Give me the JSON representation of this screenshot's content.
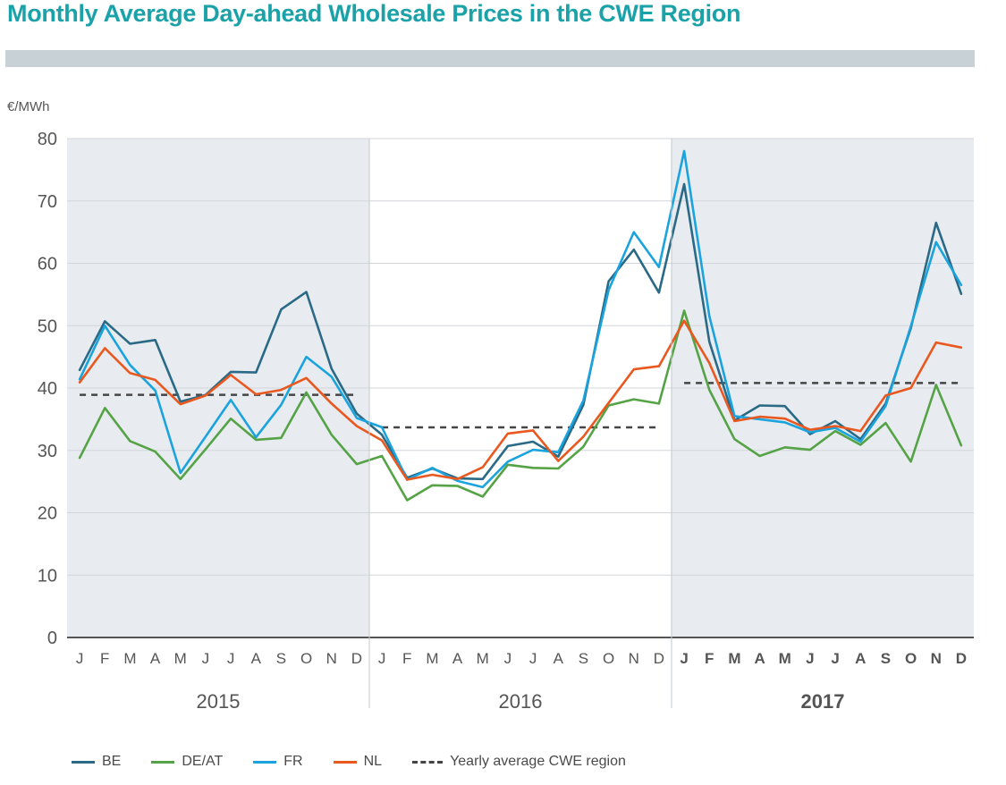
{
  "title": "Monthly Average Day-ahead Wholesale Prices in the CWE Region",
  "chart_data": {
    "type": "line",
    "ylabel": "€/MWh",
    "ylim": [
      0,
      80
    ],
    "yticks": [
      0,
      10,
      20,
      30,
      40,
      50,
      60,
      70,
      80
    ],
    "month_labels": [
      "J",
      "F",
      "M",
      "A",
      "M",
      "J",
      "J",
      "A",
      "S",
      "O",
      "N",
      "D",
      "J",
      "F",
      "M",
      "A",
      "M",
      "J",
      "J",
      "A",
      "S",
      "O",
      "N",
      "D",
      "J",
      "F",
      "M",
      "A",
      "M",
      "J",
      "J",
      "A",
      "S",
      "O",
      "N",
      "D"
    ],
    "years": [
      {
        "label": "2015",
        "bold": false
      },
      {
        "label": "2016",
        "bold": false
      },
      {
        "label": "2017",
        "bold": true
      }
    ],
    "series": [
      {
        "name": "BE",
        "color": "#2a6a86",
        "values": [
          42.9,
          50.7,
          47.1,
          47.7,
          37.8,
          38.9,
          42.6,
          42.5,
          52.6,
          55.4,
          43.1,
          35.9,
          32.5,
          25.6,
          27.1,
          25.5,
          25.4,
          30.7,
          31.4,
          29.0,
          37.3,
          57.1,
          62.2,
          55.3,
          72.7,
          47.4,
          34.8,
          37.2,
          37.1,
          32.6,
          34.7,
          31.8,
          37.5,
          49.6,
          66.5,
          55.1
        ]
      },
      {
        "name": "DE/AT",
        "color": "#55a346",
        "values": [
          28.8,
          36.8,
          31.5,
          29.8,
          25.4,
          30.2,
          35.1,
          31.7,
          32.0,
          39.3,
          32.5,
          27.8,
          29.1,
          22.0,
          24.4,
          24.3,
          22.6,
          27.7,
          27.2,
          27.1,
          30.6,
          37.2,
          38.2,
          37.5,
          52.4,
          39.7,
          31.8,
          29.1,
          30.5,
          30.1,
          33.1,
          30.9,
          34.4,
          28.2,
          40.5,
          30.8
        ]
      },
      {
        "name": "FR",
        "color": "#1ba3de",
        "values": [
          41.4,
          50.0,
          43.7,
          39.6,
          26.4,
          32.2,
          38.1,
          32.1,
          37.3,
          45.0,
          41.8,
          35.2,
          33.7,
          25.3,
          27.2,
          25.1,
          24.1,
          28.2,
          30.1,
          29.7,
          38.0,
          55.7,
          65.0,
          59.4,
          78.0,
          51.5,
          35.5,
          35.0,
          34.5,
          32.9,
          33.6,
          31.4,
          37.1,
          49.9,
          63.4,
          56.5
        ]
      },
      {
        "name": "NL",
        "color": "#e8581f",
        "values": [
          40.9,
          46.4,
          42.4,
          41.3,
          37.4,
          38.8,
          42.1,
          39.0,
          39.7,
          41.6,
          37.5,
          33.9,
          31.6,
          25.3,
          26.1,
          25.4,
          27.3,
          32.7,
          33.2,
          28.3,
          32.2,
          37.6,
          43.0,
          43.5,
          50.8,
          44.0,
          34.7,
          35.4,
          35.1,
          33.3,
          33.9,
          33.1,
          38.8,
          40.0,
          47.3,
          46.5
        ]
      }
    ],
    "yearly_average": {
      "name": "Yearly average CWE region",
      "color": "#444444",
      "values": [
        38.9,
        33.7,
        40.8
      ]
    }
  }
}
